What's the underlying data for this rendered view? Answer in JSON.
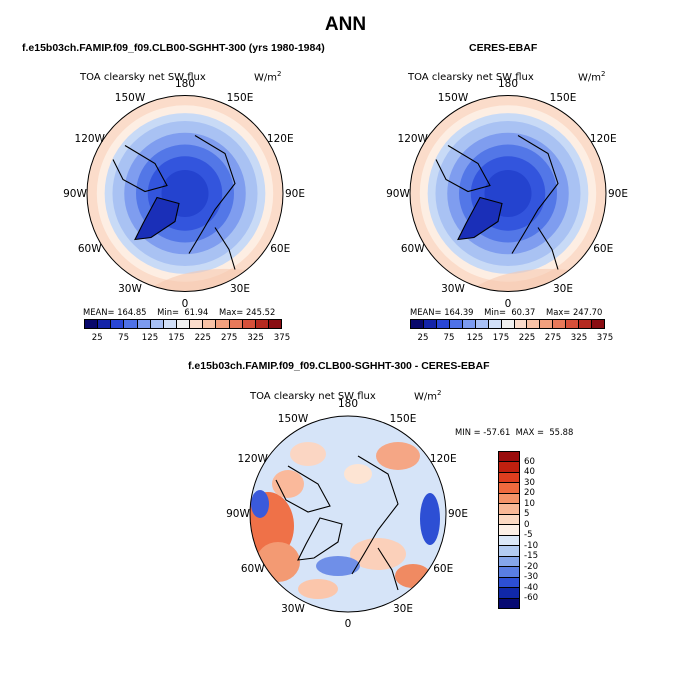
{
  "title": "ANN",
  "panels": [
    {
      "title": "f.e15b03ch.FAMIP.f09_f09.CLB00-SGHHT-300 (yrs 1980-1984)",
      "variable": "TOA clearsky net SW flux",
      "units": "W/m",
      "units_sup": "2",
      "stats": {
        "mean": "164.85",
        "min": "61.94",
        "max": "245.52"
      },
      "stats_text": "MEAN= 164.85    Min=  61.94    Max= 245.52"
    },
    {
      "title": "CERES-EBAF",
      "variable": "TOA clearsky net SW flux",
      "units": "W/m",
      "units_sup": "2",
      "stats": {
        "mean": "164.39",
        "min": "60.37",
        "max": "247.70"
      },
      "stats_text": "MEAN= 164.39    Min=  60.37    Max= 247.70"
    },
    {
      "title": "f.e15b03ch.FAMIP.f09_f09.CLB00-SGHHT-300 - CERES-EBAF",
      "variable": "TOA clearsky net SW flux",
      "units": "W/m",
      "units_sup": "2",
      "stats": {
        "min": "-57.61",
        "max": "55.88"
      },
      "stats_text": "MIN = -57.61  MAX =  55.88"
    }
  ],
  "lon_labels": [
    "180",
    "150E",
    "120E",
    "90E",
    "60E",
    "30E",
    "0",
    "30W",
    "60W",
    "90W",
    "120W",
    "150W"
  ],
  "abs_colorbar": {
    "labels": [
      "25",
      "75",
      "125",
      "175",
      "225",
      "275",
      "325",
      "375"
    ],
    "colors": [
      "#08086b",
      "#1424a8",
      "#2a47d6",
      "#4f72e8",
      "#7c9bf0",
      "#a8c0f5",
      "#d2e0f8",
      "#f0f0f0",
      "#fbdccb",
      "#f8c2a6",
      "#f2a07e",
      "#e8795a",
      "#d6503a",
      "#b52a20",
      "#8a0d12"
    ]
  },
  "diff_colorbar": {
    "labels": [
      "60",
      "40",
      "30",
      "20",
      "10",
      "5",
      "0",
      "-5",
      "-10",
      "-15",
      "-20",
      "-30",
      "-40",
      "-60"
    ],
    "colors": [
      "#9a0d0d",
      "#c0200f",
      "#de3e1f",
      "#ef6a3e",
      "#f59368",
      "#f9b896",
      "#fcd9c2",
      "#fdf0e6",
      "#dbe8f8",
      "#b3ccf2",
      "#85a6ea",
      "#5a7ee2",
      "#2d4fd4",
      "#1028a8",
      "#070a72"
    ]
  }
}
